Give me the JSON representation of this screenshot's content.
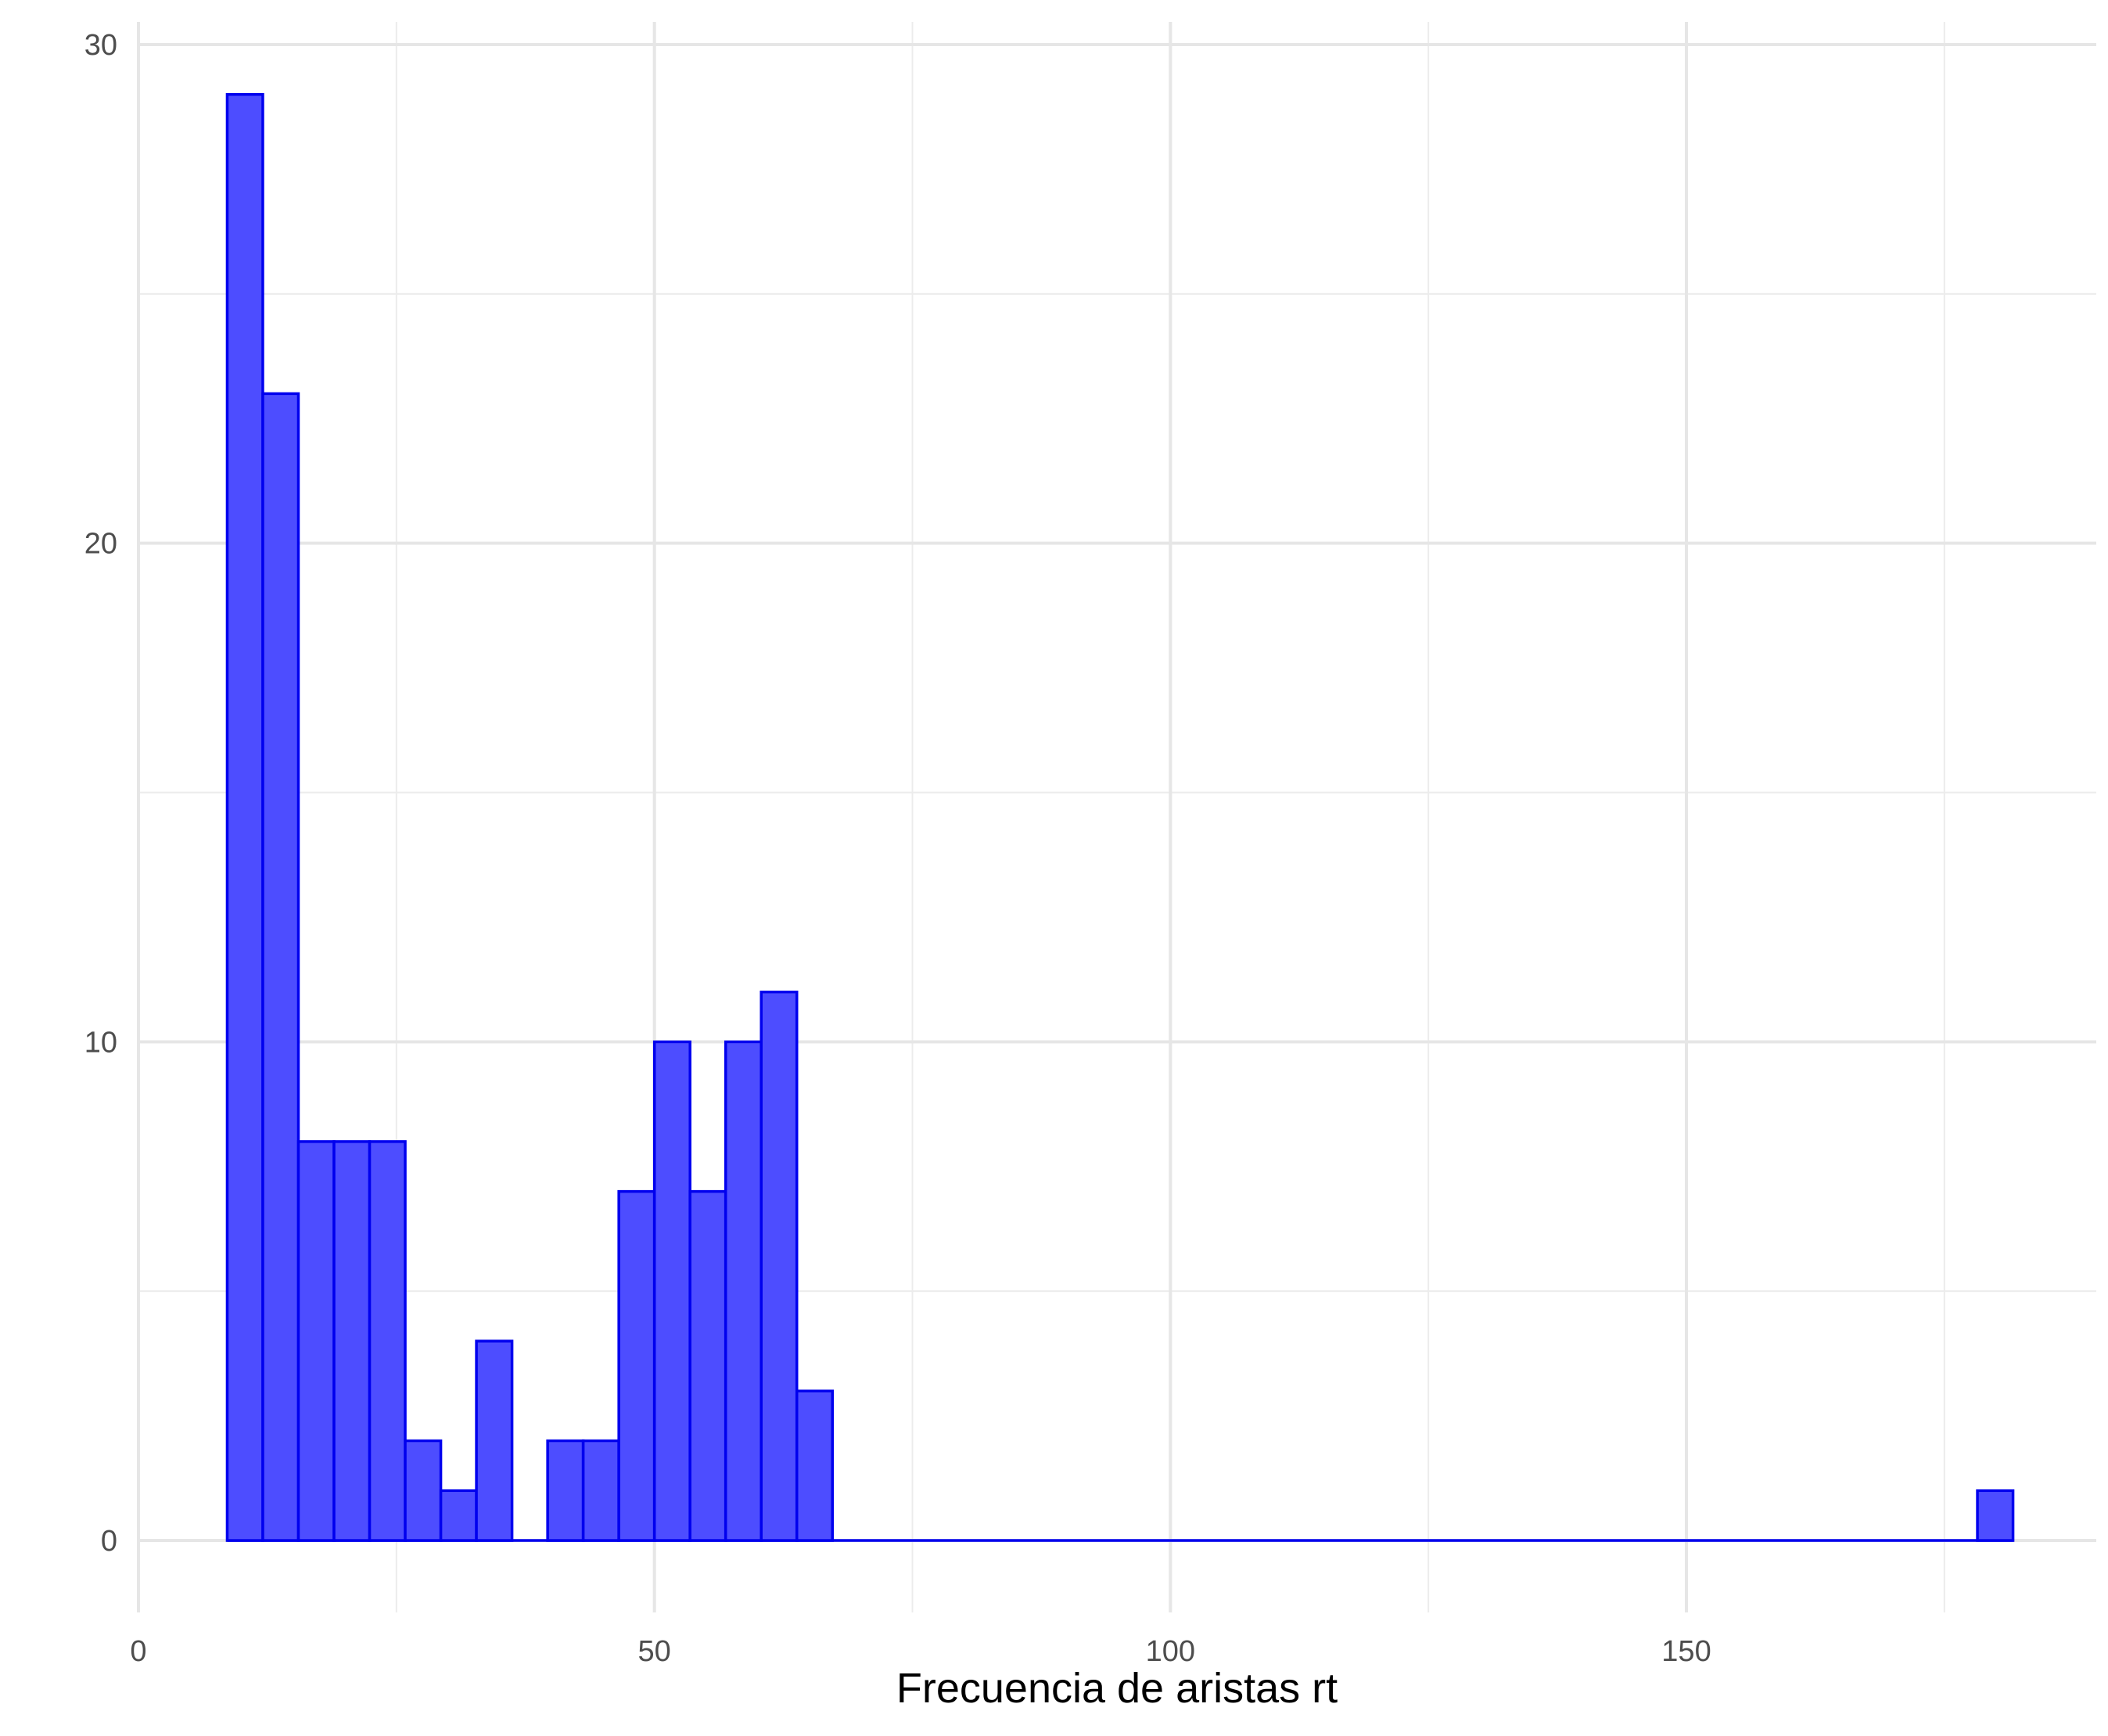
{
  "chart_data": {
    "type": "bar",
    "subtype": "histogram",
    "title": "",
    "xlabel": "Frecuencia de aristas rt",
    "ylabel": "",
    "xlim": [
      0,
      190
    ],
    "ylim": [
      0,
      30
    ],
    "x_ticks": [
      0,
      50,
      100,
      150
    ],
    "y_ticks": [
      0,
      10,
      20,
      30
    ],
    "x_minor_ticks": [
      25,
      75,
      125,
      175
    ],
    "y_minor_ticks": [
      5,
      15,
      25
    ],
    "grid": true,
    "legend": "none",
    "bin_width": 3.45,
    "bins": [
      {
        "x0": 8.6,
        "x1": 12.05,
        "count": 29
      },
      {
        "x0": 12.05,
        "x1": 15.5,
        "count": 23
      },
      {
        "x0": 15.5,
        "x1": 18.95,
        "count": 8
      },
      {
        "x0": 18.95,
        "x1": 22.4,
        "count": 8
      },
      {
        "x0": 22.4,
        "x1": 25.85,
        "count": 8
      },
      {
        "x0": 25.85,
        "x1": 29.3,
        "count": 2
      },
      {
        "x0": 29.3,
        "x1": 32.75,
        "count": 1
      },
      {
        "x0": 32.75,
        "x1": 36.2,
        "count": 4
      },
      {
        "x0": 36.2,
        "x1": 39.65,
        "count": 0
      },
      {
        "x0": 39.65,
        "x1": 43.1,
        "count": 2
      },
      {
        "x0": 43.1,
        "x1": 46.55,
        "count": 2
      },
      {
        "x0": 46.55,
        "x1": 50.0,
        "count": 7
      },
      {
        "x0": 50.0,
        "x1": 53.45,
        "count": 10
      },
      {
        "x0": 53.45,
        "x1": 56.9,
        "count": 7
      },
      {
        "x0": 56.9,
        "x1": 60.35,
        "count": 10
      },
      {
        "x0": 60.35,
        "x1": 63.8,
        "count": 11
      },
      {
        "x0": 63.8,
        "x1": 67.25,
        "count": 3
      },
      {
        "x0": 178.2,
        "x1": 181.65,
        "count": 1
      }
    ],
    "baseline_range": [
      8.6,
      181.65
    ],
    "colors": {
      "fill": "#4d4dff",
      "outline": "#0000ee",
      "grid": "#e6e6e6"
    }
  }
}
